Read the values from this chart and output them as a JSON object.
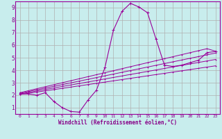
{
  "title": "",
  "xlabel": "Windchill (Refroidissement éolien,°C)",
  "ylabel": "",
  "bg_color": "#c8eded",
  "grid_color": "#b0b0b0",
  "line_color": "#990099",
  "axis_label_color": "#880088",
  "tick_label_color": "#880088",
  "xlim": [
    -0.5,
    23.5
  ],
  "ylim": [
    0.5,
    9.5
  ],
  "xticks": [
    0,
    1,
    2,
    3,
    4,
    5,
    6,
    7,
    8,
    9,
    10,
    11,
    12,
    13,
    14,
    15,
    16,
    17,
    18,
    19,
    20,
    21,
    22,
    23
  ],
  "yticks": [
    1,
    2,
    3,
    4,
    5,
    6,
    7,
    8,
    9
  ],
  "curve_x": [
    0,
    1,
    2,
    3,
    4,
    5,
    6,
    7,
    8,
    9,
    10,
    11,
    12,
    13,
    14,
    15,
    16,
    17,
    18,
    19,
    20,
    21,
    22,
    23
  ],
  "curve_y": [
    2.1,
    2.1,
    2.0,
    2.2,
    1.5,
    1.0,
    0.7,
    0.65,
    1.6,
    2.4,
    4.2,
    7.2,
    8.7,
    9.35,
    9.05,
    8.6,
    6.5,
    4.4,
    4.3,
    4.4,
    4.6,
    4.8,
    5.4,
    5.5
  ],
  "lines": [
    {
      "x": [
        0,
        1,
        2,
        3,
        4,
        5,
        6,
        7,
        8,
        9,
        10,
        11,
        12,
        13,
        14,
        15,
        16,
        17,
        18,
        19,
        20,
        21,
        22,
        23
      ],
      "y": [
        2.05,
        2.15,
        2.25,
        2.35,
        2.45,
        2.55,
        2.65,
        2.75,
        2.85,
        2.95,
        3.05,
        3.15,
        3.25,
        3.35,
        3.45,
        3.55,
        3.65,
        3.75,
        3.85,
        3.95,
        4.05,
        4.15,
        4.25,
        4.35
      ]
    },
    {
      "x": [
        0,
        1,
        2,
        3,
        4,
        5,
        6,
        7,
        8,
        9,
        10,
        11,
        12,
        13,
        14,
        15,
        16,
        17,
        18,
        19,
        20,
        21,
        22,
        23
      ],
      "y": [
        2.1,
        2.22,
        2.34,
        2.46,
        2.58,
        2.7,
        2.82,
        2.94,
        3.06,
        3.18,
        3.3,
        3.42,
        3.54,
        3.66,
        3.78,
        3.9,
        4.02,
        4.14,
        4.26,
        4.38,
        4.5,
        4.62,
        4.74,
        4.86
      ]
    },
    {
      "x": [
        0,
        1,
        2,
        3,
        4,
        5,
        6,
        7,
        8,
        9,
        10,
        11,
        12,
        13,
        14,
        15,
        16,
        17,
        18,
        19,
        20,
        21,
        22,
        23
      ],
      "y": [
        2.15,
        2.29,
        2.43,
        2.57,
        2.71,
        2.85,
        2.99,
        3.13,
        3.27,
        3.41,
        3.55,
        3.69,
        3.83,
        3.97,
        4.11,
        4.25,
        4.39,
        4.53,
        4.67,
        4.81,
        4.95,
        5.09,
        5.23,
        5.37
      ]
    },
    {
      "x": [
        0,
        1,
        2,
        3,
        4,
        5,
        6,
        7,
        8,
        9,
        10,
        11,
        12,
        13,
        14,
        15,
        16,
        17,
        18,
        19,
        20,
        21,
        22,
        23
      ],
      "y": [
        2.2,
        2.36,
        2.52,
        2.68,
        2.84,
        3.0,
        3.16,
        3.32,
        3.48,
        3.64,
        3.8,
        3.96,
        4.12,
        4.28,
        4.44,
        4.6,
        4.76,
        4.92,
        5.08,
        5.24,
        5.4,
        5.56,
        5.72,
        5.52
      ]
    }
  ]
}
